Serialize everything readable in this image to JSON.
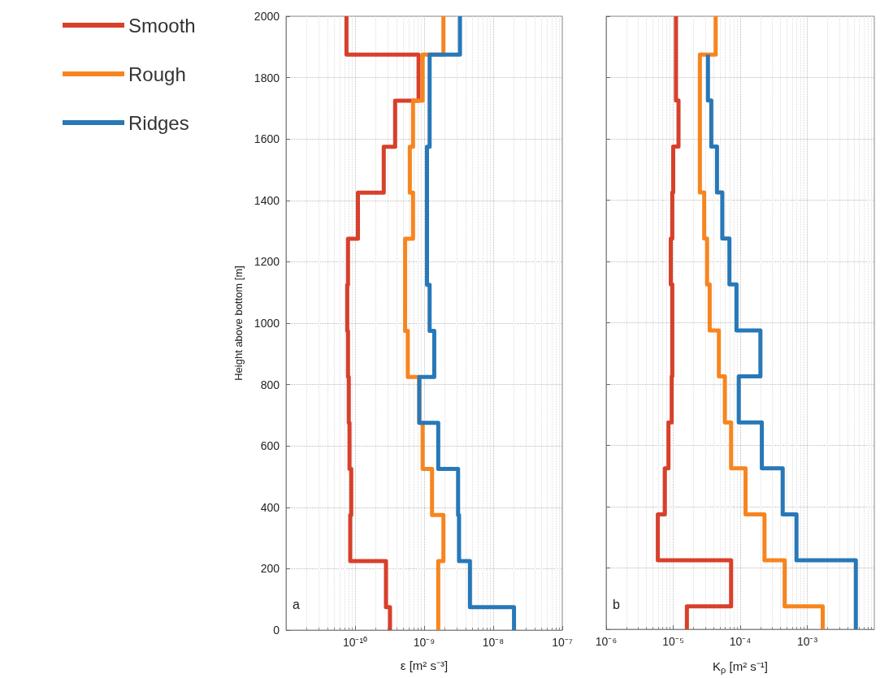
{
  "chart_data": [
    {
      "type": "line",
      "xlabel": "ε [m² s⁻³]",
      "ylabel": "Height above bottom [m]",
      "log": "x",
      "grid": true,
      "legend": "left",
      "marker": "none",
      "annotations": [
        "a"
      ],
      "xlim": [
        1e-11,
        1e-07
      ],
      "xticks": [
        {
          "value": 1e-10,
          "label": "10⁻¹⁰"
        },
        {
          "value": 1e-09,
          "label": "10⁻⁹"
        },
        {
          "value": 1e-08,
          "label": "10⁻⁸"
        },
        {
          "value": 1e-07,
          "label": "10⁻⁷"
        }
      ],
      "ylim": [
        0,
        2000
      ],
      "yticks": [
        0,
        200,
        400,
        600,
        800,
        1000,
        1200,
        1400,
        1600,
        1800,
        2000
      ],
      "series": [
        {
          "name": "Smooth",
          "color": "#d7402b",
          "x": [
            3.2e-10,
            3.2e-10,
            2.8e-10,
            2.8e-10,
            8.5e-11,
            8.5e-11,
            8.8e-11,
            8.8e-11,
            8.3e-11,
            8.3e-11,
            8.1e-11,
            8.1e-11,
            7.9e-11,
            7.9e-11,
            7.7e-11,
            7.7e-11,
            7.9e-11,
            7.9e-11,
            1.1e-10,
            1.1e-10,
            2.6e-10,
            2.6e-10,
            3.8e-10,
            3.8e-10,
            8.3e-10,
            8.3e-10,
            7.5e-11,
            7.5e-11
          ],
          "values": [
            0,
            75,
            75,
            225,
            225,
            375,
            375,
            525,
            525,
            675,
            675,
            825,
            825,
            975,
            975,
            1125,
            1125,
            1275,
            1275,
            1425,
            1425,
            1575,
            1575,
            1725,
            1725,
            1875,
            1875,
            2000
          ]
        },
        {
          "name": "Rough",
          "color": "#f7851f",
          "x": [
            1.6e-09,
            1.6e-09,
            1.6e-09,
            1.6e-09,
            1.9e-09,
            1.9e-09,
            1.3e-09,
            1.3e-09,
            9.5e-10,
            9.5e-10,
            8.5e-10,
            8.5e-10,
            5.8e-10,
            5.8e-10,
            5.3e-10,
            5.3e-10,
            5.3e-10,
            5.3e-10,
            6.9e-10,
            6.9e-10,
            6.2e-10,
            6.2e-10,
            6.9e-10,
            6.9e-10,
            9.5e-10,
            9.5e-10,
            1.9e-09,
            1.9e-09
          ],
          "values": [
            0,
            75,
            75,
            225,
            225,
            375,
            375,
            525,
            525,
            675,
            675,
            825,
            825,
            975,
            975,
            1125,
            1125,
            1275,
            1275,
            1425,
            1425,
            1575,
            1575,
            1725,
            1725,
            1875,
            1875,
            2000
          ]
        },
        {
          "name": "Ridges",
          "color": "#2878b8",
          "x": [
            2e-08,
            2e-08,
            4.6e-09,
            4.6e-09,
            3.2e-09,
            3.2e-09,
            3.1e-09,
            3.1e-09,
            1.6e-09,
            1.6e-09,
            8.5e-10,
            8.5e-10,
            1.4e-09,
            1.4e-09,
            1.2e-09,
            1.2e-09,
            1.1e-09,
            1.1e-09,
            1.1e-09,
            1.1e-09,
            1.1e-09,
            1.1e-09,
            1.2e-09,
            1.2e-09,
            1.2e-09,
            1.2e-09,
            3.3e-09,
            3.3e-09
          ],
          "values": [
            0,
            75,
            75,
            225,
            225,
            375,
            375,
            525,
            525,
            675,
            675,
            825,
            825,
            975,
            975,
            1125,
            1125,
            1275,
            1275,
            1425,
            1425,
            1575,
            1575,
            1725,
            1725,
            1875,
            1875,
            2000
          ]
        }
      ]
    },
    {
      "type": "line",
      "xlabel": "K$_{ρ}$ [m² s⁻¹]",
      "log": "x",
      "grid": true,
      "marker": "none",
      "tick_labels": "x",
      "annotations": [
        "b"
      ],
      "xlim": [
        1e-06,
        0.01
      ],
      "xticks": [
        {
          "value": 1e-06,
          "label": "10⁻⁶"
        },
        {
          "value": 1e-05,
          "label": "10⁻⁵"
        },
        {
          "value": 0.0001,
          "label": "10⁻⁴"
        },
        {
          "value": 0.001,
          "label": "10⁻³"
        }
      ],
      "ylim": [
        0,
        2000
      ],
      "yticks": [
        0,
        200,
        400,
        600,
        800,
        1000,
        1200,
        1400,
        1600,
        1800,
        2000
      ],
      "series": [
        {
          "color": "#d7402b",
          "x": [
            1.6e-05,
            1.6e-05,
            7.3e-05,
            7.3e-05,
            5.9e-06,
            5.9e-06,
            7.5e-06,
            7.5e-06,
            8.5e-06,
            8.5e-06,
            9.5e-06,
            9.5e-06,
            9.7e-06,
            9.7e-06,
            9.7e-06,
            9.7e-06,
            9.2e-06,
            9.2e-06,
            9.7e-06,
            9.7e-06,
            1e-05,
            1e-05,
            1.2e-05,
            1.2e-05,
            1.1e-05,
            1.1e-05,
            1.1e-05,
            1.1e-05
          ],
          "values": [
            0,
            75,
            75,
            225,
            225,
            375,
            375,
            525,
            525,
            675,
            675,
            825,
            825,
            975,
            975,
            1125,
            1125,
            1275,
            1275,
            1425,
            1425,
            1575,
            1575,
            1725,
            1725,
            1875,
            1875,
            2000
          ]
        },
        {
          "color": "#f7851f",
          "x": [
            0.0017,
            0.0017,
            0.00046,
            0.00046,
            0.00023,
            0.00023,
            0.00012,
            0.00012,
            7.3e-05,
            7.3e-05,
            5.9e-05,
            5.9e-05,
            4.8e-05,
            4.8e-05,
            3.5e-05,
            3.5e-05,
            3.2e-05,
            3.2e-05,
            2.9e-05,
            2.9e-05,
            2.5e-05,
            2.5e-05,
            2.5e-05,
            2.5e-05,
            2.5e-05,
            2.5e-05,
            4.3e-05,
            4.3e-05
          ],
          "values": [
            0,
            75,
            75,
            225,
            225,
            375,
            375,
            525,
            525,
            675,
            675,
            825,
            825,
            975,
            975,
            1125,
            1125,
            1275,
            1275,
            1425,
            1425,
            1575,
            1575,
            1725,
            1725,
            1875,
            1875,
            2000
          ]
        },
        {
          "color": "#2878b8",
          "x": [
            0.0053,
            0.0053,
            0.0053,
            0.0053,
            0.00069,
            0.00069,
            0.00043,
            0.00043,
            0.00021,
            0.00021,
            9.5e-05,
            9.5e-05,
            0.0002,
            0.0002,
            8.8e-05,
            8.8e-05,
            6.9e-05,
            6.9e-05,
            5.4e-05,
            5.4e-05,
            4.5e-05,
            4.5e-05,
            3.7e-05,
            3.7e-05,
            3.3e-05,
            3.3e-05
          ],
          "values": [
            0,
            75,
            75,
            225,
            225,
            375,
            375,
            525,
            525,
            675,
            675,
            825,
            825,
            975,
            975,
            1125,
            1125,
            1275,
            1275,
            1425,
            1425,
            1575,
            1575,
            1725,
            1725,
            1875
          ]
        }
      ]
    }
  ]
}
